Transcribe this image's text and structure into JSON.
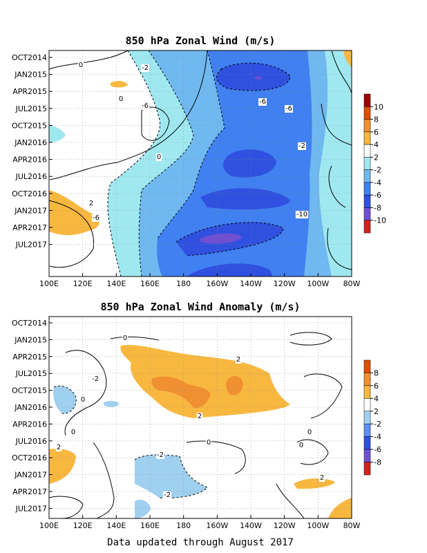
{
  "chart_data": [
    {
      "type": "heatmap",
      "title": "850 hPa Zonal Wind (m/s)",
      "x_ticks": [
        "100E",
        "120E",
        "140E",
        "160E",
        "180",
        "160W",
        "140W",
        "120W",
        "100W",
        "80W"
      ],
      "y_ticks": [
        "OCT2014",
        "JAN2015",
        "APR2015",
        "JUL2015",
        "OCT2015",
        "JAN2016",
        "APR2016",
        "JUL2016",
        "OCT2016",
        "JAN2017",
        "APR2017",
        "JUL2017"
      ],
      "colorbar": {
        "labels": [
          "10",
          "8",
          "6",
          "4",
          "2",
          "-2",
          "-4",
          "-6",
          "-8",
          "-10"
        ],
        "colors": [
          "#a00000",
          "#e05000",
          "#f09030",
          "#f8b840",
          "#ffffff",
          "#a0e8f0",
          "#70b8f0",
          "#4080f0",
          "#3050e0",
          "#7050d0",
          "#d42020"
        ]
      },
      "contour_labels": [
        "0",
        "-2",
        "0",
        "-6",
        "-6",
        "-6",
        "-2",
        "0",
        "2",
        "-6",
        "-10"
      ],
      "grid": true
    },
    {
      "type": "heatmap",
      "title": "850 hPa Zonal Wind Anomaly (m/s)",
      "x_ticks": [
        "100E",
        "120E",
        "140E",
        "160E",
        "180",
        "160W",
        "140W",
        "120W",
        "100W",
        "80W"
      ],
      "y_ticks": [
        "OCT2014",
        "JAN2015",
        "APR2015",
        "JUL2015",
        "OCT2015",
        "JAN2016",
        "APR2016",
        "JUL2016",
        "OCT2016",
        "JAN2017",
        "APR2017",
        "JUL2017"
      ],
      "colorbar": {
        "labels": [
          "8",
          "6",
          "4",
          "2",
          "-2",
          "-4",
          "-6",
          "-8"
        ],
        "colors": [
          "#e05000",
          "#f09030",
          "#f8b840",
          "#ffffff",
          "#a0d0f0",
          "#6090f0",
          "#3050e0",
          "#7050d0",
          "#d42020"
        ]
      },
      "contour_labels": [
        "0",
        "2",
        "-2",
        "0",
        "0",
        "2",
        "0",
        "-2",
        "2",
        "0",
        "0",
        "-2",
        "2"
      ],
      "grid": true
    }
  ],
  "footer": "Data updated through August 2017"
}
